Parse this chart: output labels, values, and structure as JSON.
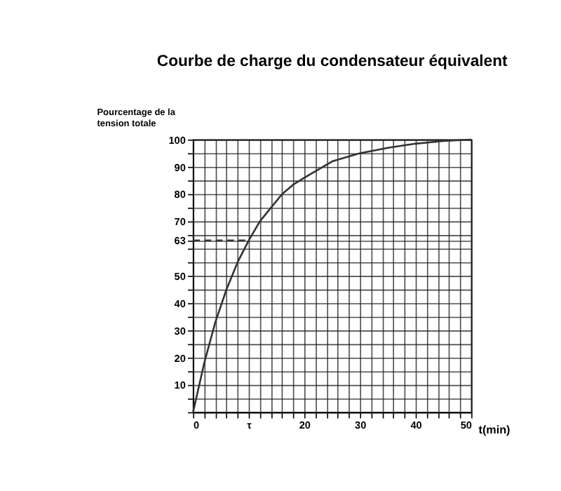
{
  "chart_data": {
    "type": "line",
    "title": "Courbe de charge du condensateur équivalent",
    "xlabel": "t(min)",
    "ylabel": "Pourcentage de la\ntension totale",
    "x": [
      0,
      1,
      2,
      4,
      6,
      8,
      10,
      12,
      14,
      16,
      18,
      20,
      25,
      30,
      35,
      40,
      45,
      50
    ],
    "series": [
      {
        "color": "#333333",
        "values": [
          0,
          9,
          18,
          33,
          45,
          55,
          63,
          70,
          75,
          80,
          83.5,
          86,
          92,
          95,
          97,
          98.5,
          99.5,
          100
        ]
      },
      {
        "color": "#333333",
        "line_style": "dashed",
        "x": [
          0,
          10
        ],
        "values": [
          63,
          63
        ]
      }
    ],
    "xlim": [
      0,
      50
    ],
    "ylim": [
      0,
      100
    ],
    "xticks": [
      0,
      {
        "value": 2,
        "label": null
      },
      {
        "value": 4,
        "label": null
      },
      {
        "value": 6,
        "label": null
      },
      {
        "value": 8,
        "label": null
      },
      {
        "value": 10,
        "label": "τ"
      },
      {
        "value": 12,
        "label": null
      },
      {
        "value": 14,
        "label": null
      },
      {
        "value": 16,
        "label": null
      },
      {
        "value": 18,
        "label": null
      },
      20,
      {
        "value": 22,
        "label": null
      },
      {
        "value": 24,
        "label": null
      },
      {
        "value": 26,
        "label": null
      },
      {
        "value": 28,
        "label": null
      },
      30,
      {
        "value": 32,
        "label": null
      },
      {
        "value": 34,
        "label": null
      },
      {
        "value": 36,
        "label": null
      },
      {
        "value": 38,
        "label": null
      },
      40,
      {
        "value": 42,
        "label": null
      },
      {
        "value": 44,
        "label": null
      },
      {
        "value": 46,
        "label": null
      },
      {
        "value": 48,
        "label": null
      },
      50
    ],
    "yticks": [
      {
        "value": 0,
        "label": null
      },
      {
        "value": 5,
        "label": null
      },
      10,
      {
        "value": 15,
        "label": null
      },
      20,
      {
        "value": 25,
        "label": null
      },
      30,
      {
        "value": 35,
        "label": null
      },
      40,
      {
        "value": 45,
        "label": null
      },
      50,
      {
        "value": 55,
        "label": null
      },
      {
        "value": 60,
        "label": null
      },
      63,
      {
        "value": 65,
        "label": null
      },
      70,
      {
        "value": 75,
        "label": null
      },
      80,
      {
        "value": 85,
        "label": null
      },
      90,
      {
        "value": 95,
        "label": null
      },
      100
    ],
    "grid": true,
    "marker": "none",
    "line_style": "solid"
  }
}
